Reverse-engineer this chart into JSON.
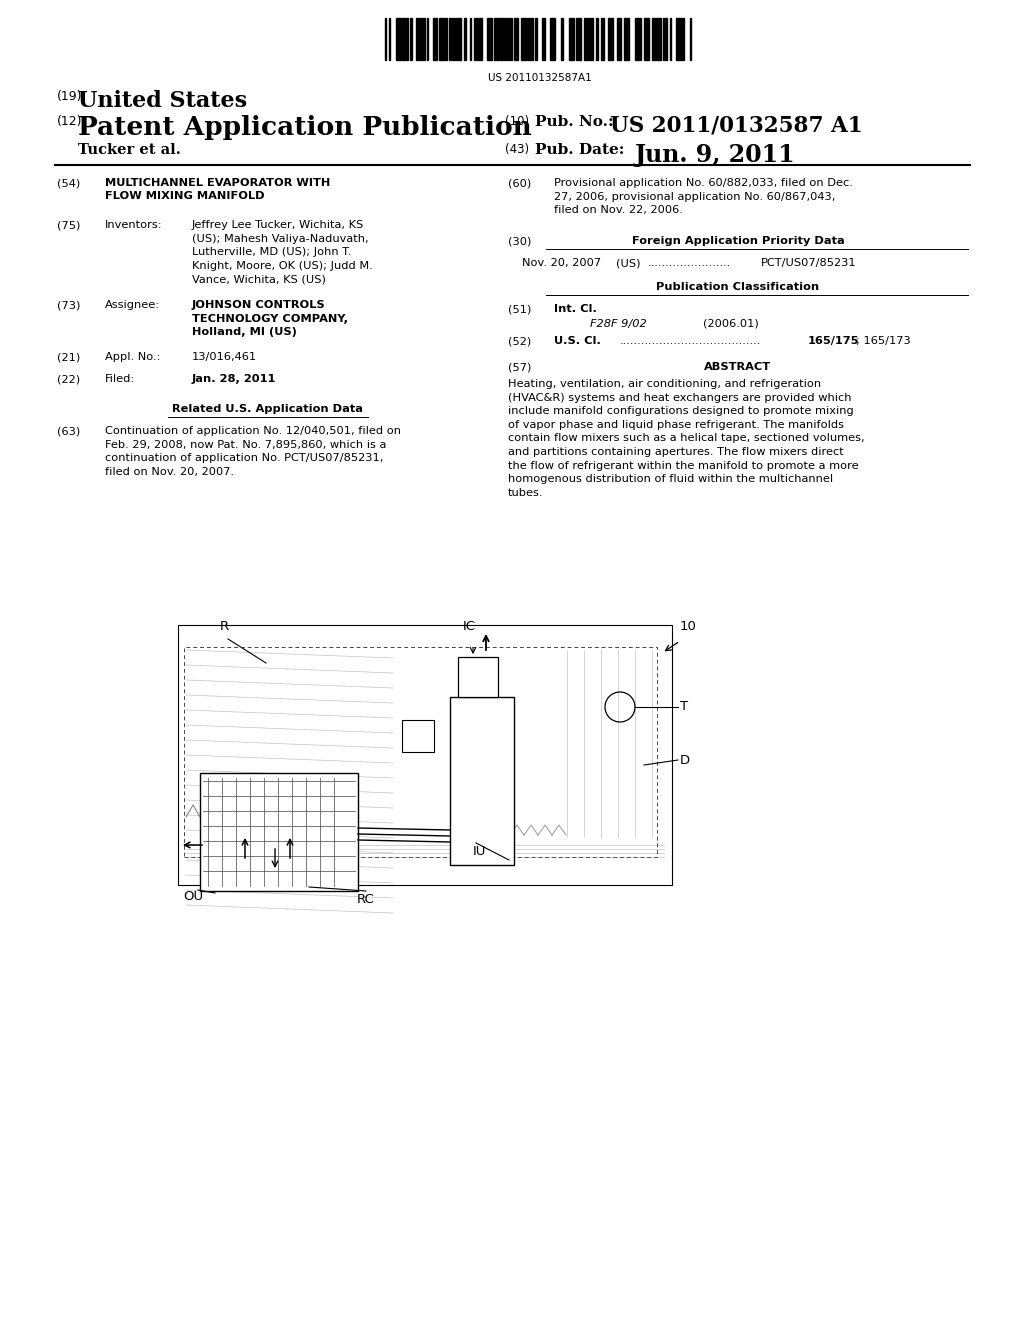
{
  "bg": "#ffffff",
  "barcode_num": "US 20110132587A1",
  "us19": "(19)",
  "us19_text": "United States",
  "us12": "(12)",
  "us12_text": "Patent Application Publication",
  "us10": "(10)",
  "us10_label": "Pub. No.:",
  "us10_val": "US 2011/0132587 A1",
  "us43": "(43)",
  "us43_label": "Pub. Date:",
  "us43_val": "Jun. 9, 2011",
  "author": "Tucker et al.",
  "n54": "(54)",
  "t54": "MULTICHANNEL EVAPORATOR WITH\nFLOW MIXING MANIFOLD",
  "n75": "(75)",
  "l75": "Inventors:",
  "v75": "Jeffrey Lee Tucker, Wichita, KS\n(US); Mahesh Valiya-Naduvath,\nLutherville, MD (US); John T.\nKnight, Moore, OK (US); Judd M.\nVance, Wichita, KS (US)",
  "n73": "(73)",
  "l73": "Assignee:",
  "v73": "JOHNSON CONTROLS\nTECHNOLOGY COMPANY,\nHolland, MI (US)",
  "n21": "(21)",
  "l21": "Appl. No.:",
  "v21": "13/016,461",
  "n22": "(22)",
  "l22": "Filed:",
  "v22": "Jan. 28, 2011",
  "related_hdr": "Related U.S. Application Data",
  "n63": "(63)",
  "v63": "Continuation of application No. 12/040,501, filed on\nFeb. 29, 2008, now Pat. No. 7,895,860, which is a\ncontinuation of application No. PCT/US07/85231,\nfiled on Nov. 20, 2007.",
  "n60": "(60)",
  "v60": "Provisional application No. 60/882,033, filed on Dec.\n27, 2006, provisional application No. 60/867,043,\nfiled on Nov. 22, 2006.",
  "n30": "(30)",
  "h30": "Foreign Application Priority Data",
  "d30": "Nov. 20, 2007",
  "c30": "(US)",
  "dots30": ".......................",
  "val30": "PCT/US07/85231",
  "pub_cls_hdr": "Publication Classification",
  "n51": "(51)",
  "l51": "Int. Cl.",
  "cls51": "F28F 9/02",
  "yr51": "(2006.01)",
  "n52": "(52)",
  "l52": "U.S. Cl.",
  "dots52": ".......................................",
  "val52": "165/175",
  "val52b": "; 165/173",
  "n57": "(57)",
  "h57": "ABSTRACT",
  "v57": "Heating, ventilation, air conditioning, and refrigeration\n(HVAC&R) systems and heat exchangers are provided which\ninclude manifold configurations designed to promote mixing\nof vapor phase and liquid phase refrigerant. The manifolds\ncontain flow mixers such as a helical tape, sectioned volumes,\nand partitions containing apertures. The flow mixers direct\nthe flow of refrigerant within the manifold to promote a more\nhomogenous distribution of fluid within the multichannel\ntubes."
}
